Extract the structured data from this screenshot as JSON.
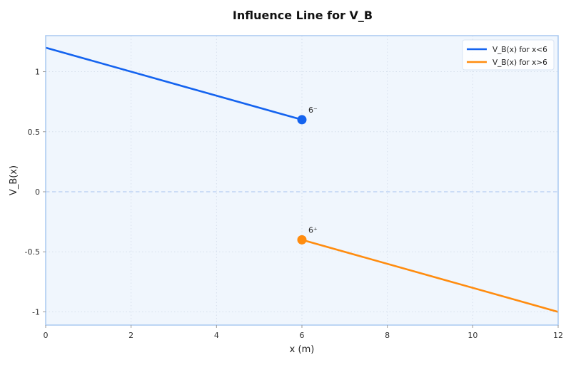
{
  "chart_data": {
    "type": "line",
    "title": "Influence Line for V_B",
    "xlabel": "x (m)",
    "ylabel": "V_B(x)",
    "xlim": [
      0,
      12
    ],
    "ylim": [
      -1.11,
      1.3
    ],
    "xticks": [
      0,
      2,
      4,
      6,
      8,
      10,
      12
    ],
    "yticks": [
      -1,
      -0.5,
      0,
      0.5,
      1
    ],
    "ytick_labels": [
      "-1",
      "-0.5",
      "0",
      "0.5",
      "1"
    ],
    "grid": true,
    "legend_placement": "top-right",
    "series": [
      {
        "name": "V_B(x) for x<6",
        "color": "#1463ef",
        "x": [
          0,
          6
        ],
        "y": [
          1.2,
          0.6
        ],
        "endpoint": [
          6,
          0.6
        ],
        "annotation": "6⁻"
      },
      {
        "name": "V_B(x) for x>6",
        "color": "#ff8c0f",
        "x": [
          6,
          12
        ],
        "y": [
          -0.4,
          -1.0
        ],
        "endpoint": [
          6,
          -0.4
        ],
        "annotation": "6⁺"
      }
    ],
    "reference_line": {
      "y": 0,
      "style": "dashed"
    },
    "colors": {
      "plot_background": "#f0f6fd",
      "frame": "#a9c8f0"
    }
  }
}
